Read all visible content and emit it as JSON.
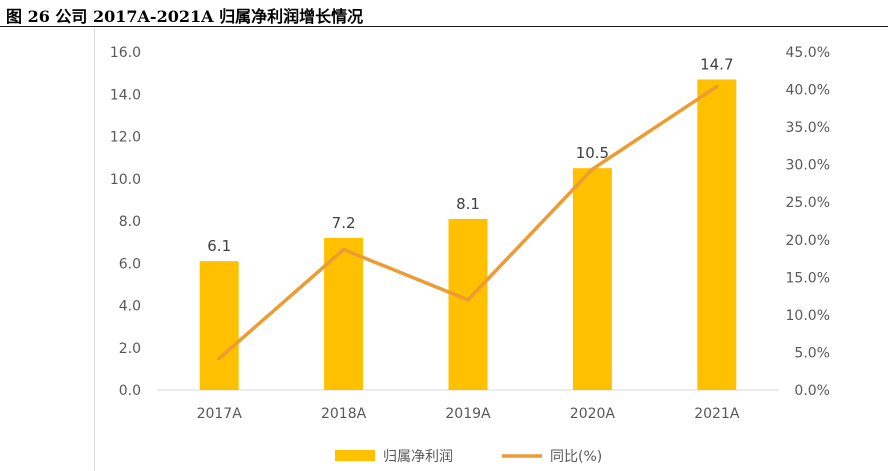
{
  "figure": {
    "title": "图 26 公司 2017A-2021A 归属净利润增长情况"
  },
  "colors": {
    "bar": "#FFC000",
    "line": "#ED9B33",
    "axis_text": "#595959",
    "label_text": "#404040",
    "axis_line": "#D9D9D9"
  },
  "chart_data": {
    "type": "bar",
    "title": "图 26 公司 2017A-2021A 归属净利润增长情况",
    "categories": [
      "2017A",
      "2018A",
      "2019A",
      "2020A",
      "2021A"
    ],
    "series": [
      {
        "name": "归属净利润",
        "type": "bar",
        "axis": "left",
        "values": [
          6.1,
          7.2,
          8.1,
          10.5,
          14.7
        ],
        "labels": [
          "6.1",
          "7.2",
          "8.1",
          "10.5",
          "14.7"
        ]
      },
      {
        "name": "同比(%)",
        "type": "line",
        "axis": "right",
        "values": [
          4.2,
          18.7,
          12.0,
          29.4,
          40.4
        ]
      }
    ],
    "y_left": {
      "min": 0,
      "max": 16,
      "step": 2,
      "ticks": [
        "0.0",
        "2.0",
        "4.0",
        "6.0",
        "8.0",
        "10.0",
        "12.0",
        "14.0",
        "16.0"
      ]
    },
    "y_right": {
      "min": 0,
      "max": 45,
      "step": 5,
      "ticks": [
        "0.0%",
        "5.0%",
        "10.0%",
        "15.0%",
        "20.0%",
        "25.0%",
        "30.0%",
        "35.0%",
        "40.0%",
        "45.0%"
      ]
    },
    "grid": false,
    "legend": {
      "position": "bottom",
      "entries": [
        "归属净利润",
        "同比(%)"
      ]
    }
  }
}
